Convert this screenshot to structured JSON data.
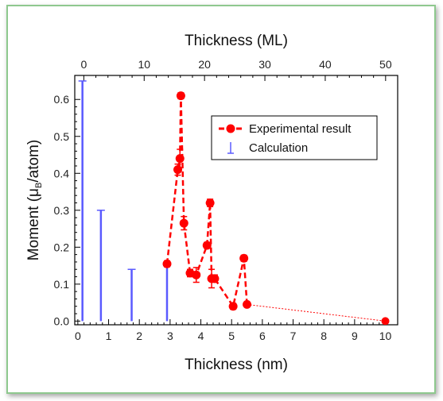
{
  "chart_data": {
    "type": "scatter",
    "x_axis": {
      "label": "Thickness (nm)",
      "range": [
        -0.1,
        10.4
      ],
      "ticks": [
        "0",
        "1",
        "2",
        "3",
        "4",
        "5",
        "6",
        "7",
        "8",
        "9",
        "10"
      ]
    },
    "x2_axis": {
      "label": "Thickness (ML)",
      "range": [
        -1.5,
        52
      ],
      "ticks": [
        "0",
        "10",
        "20",
        "30",
        "40",
        "50"
      ]
    },
    "y_axis": {
      "label_main": "Moment (",
      "label_mu": "μ",
      "label_sub": "B",
      "label_end": "/atom)",
      "range": [
        -0.01,
        0.665
      ],
      "ticks": [
        "0.0",
        "0.1",
        "0.2",
        "0.3",
        "0.4",
        "0.5",
        "0.6"
      ]
    },
    "legend": {
      "placement": "top-right",
      "experimental": "Experimental result",
      "calculation": "Calculation"
    },
    "series": [
      {
        "name": "Experimental result",
        "style": "red-dashed-markers",
        "color": "#ff0000",
        "points": [
          {
            "x": 2.9,
            "y": 0.155,
            "err": 0.008
          },
          {
            "x": 3.25,
            "y": 0.41,
            "err": 0.015
          },
          {
            "x": 3.32,
            "y": 0.44,
            "err": 0.025
          },
          {
            "x": 3.35,
            "y": 0.61,
            "err": 0.008
          },
          {
            "x": 3.45,
            "y": 0.265,
            "err": 0.018
          },
          {
            "x": 3.65,
            "y": 0.13,
            "err": 0.01
          },
          {
            "x": 3.85,
            "y": 0.125,
            "err": 0.02
          },
          {
            "x": 4.2,
            "y": 0.205,
            "err": 0.008
          },
          {
            "x": 4.3,
            "y": 0.32,
            "err": 0.01
          },
          {
            "x": 4.35,
            "y": 0.115,
            "err": 0.025
          },
          {
            "x": 4.45,
            "y": 0.115,
            "err": 0.01
          },
          {
            "x": 5.05,
            "y": 0.04,
            "err": 0.008
          },
          {
            "x": 5.4,
            "y": 0.17,
            "err": 0.008
          },
          {
            "x": 5.5,
            "y": 0.045,
            "err": 0.005
          }
        ],
        "tail_points": [
          {
            "x": 5.5,
            "y": 0.045
          },
          {
            "x": 10.0,
            "y": 0.0
          }
        ]
      },
      {
        "name": "Calculation",
        "style": "blue-stems",
        "color": "#5a5aff",
        "points": [
          {
            "x": 0.15,
            "y": 0.65
          },
          {
            "x": 0.75,
            "y": 0.3
          },
          {
            "x": 1.75,
            "y": 0.14
          },
          {
            "x": 2.9,
            "y": 0.15
          }
        ]
      }
    ]
  }
}
